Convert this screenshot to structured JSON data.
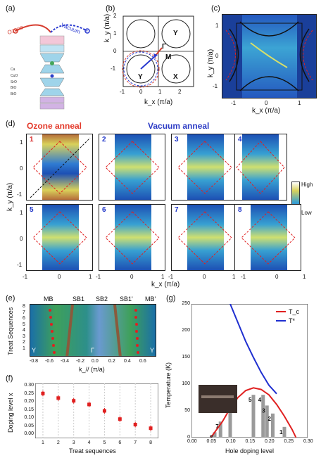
{
  "panel_labels": {
    "a": "(a)",
    "b": "(b)",
    "c": "(c)",
    "d": "(d)",
    "e": "(e)",
    "f": "(f)",
    "g": "(g)"
  },
  "panel_a": {
    "ozone": "Ozone",
    "vacuum": "Vacuum",
    "layers": [
      "Ca",
      "CuO",
      "SrO",
      "BiO",
      "BiO"
    ]
  },
  "panel_b": {
    "xlabel": "k_x (π/a)",
    "ylabel": "k_y (π/a)",
    "xticks": [
      "-1",
      "0",
      "1",
      "2"
    ],
    "yticks": [
      "2",
      "1",
      "0",
      "-1"
    ],
    "point_labels": [
      "Y",
      "M",
      "Γ",
      "Y",
      "X"
    ]
  },
  "panel_c": {
    "xlabel": "k_x (π/a)",
    "ylabel": "k_y (π/a)",
    "xticks": [
      "-1",
      "0",
      "1"
    ],
    "yticks": [
      "1",
      "0",
      "-1"
    ]
  },
  "panel_d": {
    "ozone_title": "Ozone anneal",
    "vacuum_title": "Vacuum anneal",
    "map_numbers": [
      "1",
      "2",
      "3",
      "4",
      "5",
      "6",
      "7",
      "8"
    ],
    "xticks": [
      "-1",
      "0",
      "1"
    ],
    "yticks_top": [
      "1",
      "0",
      "-1"
    ],
    "yticks_bottom": [
      "1",
      "0",
      "-1"
    ],
    "xlabel": "k_x (π/a)",
    "ylabel": "k_y (π/a)",
    "colorbar": {
      "high": "High",
      "low": "Low"
    }
  },
  "panel_e": {
    "top_labels": [
      "MB",
      "SB1",
      "SB2",
      "SB1'",
      "MB'"
    ],
    "ylabel": "Treat Sequences",
    "yticks": [
      "8",
      "7",
      "6",
      "5",
      "4",
      "3",
      "2",
      "1"
    ],
    "xticks": [
      "-0.8",
      "-0.6",
      "-0.4",
      "-0.2",
      "0.0",
      "0.2",
      "0.4",
      "0.6"
    ],
    "xlabel": "k_// (π/a)",
    "edge_labels": [
      "Y",
      "Γ",
      "Y"
    ]
  },
  "panel_f": {
    "ylabel": "Doping level x",
    "xlabel": "Treat sequences",
    "yticks": [
      "0.30",
      "0.25",
      "0.20",
      "0.15",
      "0.10",
      "0.05",
      "0.00"
    ],
    "xticks": [
      "1",
      "2",
      "3",
      "4",
      "5",
      "6",
      "7",
      "8"
    ]
  },
  "panel_g": {
    "ylabel": "Temperature (K)",
    "xlabel": "Hole doping level",
    "yticks": [
      "250",
      "200",
      "150",
      "100",
      "50",
      "0"
    ],
    "xticks": [
      "0.00",
      "0.05",
      "0.10",
      "0.15",
      "0.20",
      "0.25",
      "0.30"
    ],
    "legend": [
      {
        "label": "T_c",
        "color": "#e02020"
      },
      {
        "label": "T*",
        "color": "#1f2fd0"
      }
    ],
    "bar_labels": [
      "8",
      "7",
      "6",
      "5",
      "4",
      "3",
      "2",
      "1"
    ]
  },
  "chart_data": [
    {
      "type": "scatter",
      "title": "",
      "xlabel": "Treat sequences",
      "ylabel": "Doping level x",
      "x": [
        1,
        2,
        3,
        4,
        5,
        6,
        7,
        8
      ],
      "values": [
        0.245,
        0.22,
        0.205,
        0.185,
        0.15,
        0.105,
        0.075,
        0.055
      ],
      "xlim": [
        0.5,
        8.5
      ],
      "ylim": [
        0.0,
        0.3
      ],
      "grid": true
    },
    {
      "type": "line",
      "title": "",
      "xlabel": "Hole doping level",
      "ylabel": "Temperature (K)",
      "xlim": [
        0.0,
        0.3
      ],
      "ylim": [
        0,
        250
      ],
      "series": [
        {
          "name": "T_c",
          "x": [
            0.05,
            0.08,
            0.1,
            0.12,
            0.14,
            0.16,
            0.18,
            0.2,
            0.22,
            0.24,
            0.26,
            0.27
          ],
          "y": [
            0,
            30,
            55,
            75,
            88,
            93,
            90,
            80,
            62,
            40,
            15,
            0
          ]
        },
        {
          "name": "T*",
          "x": [
            0.1,
            0.12,
            0.14,
            0.16,
            0.18,
            0.2,
            0.22
          ],
          "y": [
            250,
            215,
            180,
            150,
            122,
            98,
            82
          ]
        }
      ],
      "bars": {
        "labels": [
          "8",
          "7",
          "6",
          "5",
          "4",
          "3",
          "2",
          "1"
        ],
        "x": [
          0.06,
          0.075,
          0.1,
          0.16,
          0.185,
          0.195,
          0.21,
          0.24
        ],
        "values": [
          10,
          30,
          60,
          80,
          80,
          60,
          45,
          20
        ]
      },
      "grid": false
    }
  ]
}
